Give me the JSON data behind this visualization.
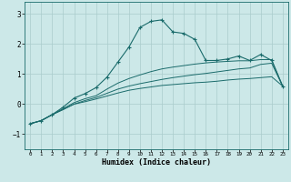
{
  "title": "",
  "xlabel": "Humidex (Indice chaleur)",
  "ylabel": "",
  "background_color": "#cce8e8",
  "grid_color": "#aacccc",
  "line_color": "#1a6b6b",
  "xlim": [
    -0.5,
    23.5
  ],
  "ylim": [
    -1.5,
    3.4
  ],
  "yticks": [
    -1,
    0,
    1,
    2,
    3
  ],
  "xticks": [
    0,
    1,
    2,
    3,
    4,
    5,
    6,
    7,
    8,
    9,
    10,
    11,
    12,
    13,
    14,
    15,
    16,
    17,
    18,
    19,
    20,
    21,
    22,
    23
  ],
  "line1_x": [
    0,
    1,
    2,
    3,
    4,
    5,
    6,
    7,
    8,
    9,
    10,
    11,
    12,
    13,
    14,
    15,
    16,
    17,
    18,
    19,
    20,
    21,
    22,
    23
  ],
  "line1_y": [
    -0.65,
    -0.55,
    -0.35,
    -0.1,
    0.2,
    0.35,
    0.55,
    0.9,
    1.4,
    1.9,
    2.55,
    2.75,
    2.8,
    2.4,
    2.35,
    2.15,
    1.45,
    1.45,
    1.5,
    1.6,
    1.45,
    1.65,
    1.45,
    0.6
  ],
  "line2_x": [
    0,
    1,
    2,
    3,
    4,
    5,
    6,
    7,
    8,
    9,
    10,
    11,
    12,
    13,
    14,
    15,
    16,
    17,
    18,
    19,
    20,
    21,
    22,
    23
  ],
  "line2_y": [
    -0.65,
    -0.55,
    -0.35,
    -0.15,
    0.05,
    0.18,
    0.28,
    0.5,
    0.7,
    0.85,
    0.97,
    1.08,
    1.17,
    1.23,
    1.28,
    1.33,
    1.37,
    1.4,
    1.42,
    1.44,
    1.44,
    1.48,
    1.48,
    0.6
  ],
  "line3_x": [
    0,
    1,
    2,
    3,
    4,
    5,
    6,
    7,
    8,
    9,
    10,
    11,
    12,
    13,
    14,
    15,
    16,
    17,
    18,
    19,
    20,
    21,
    22,
    23
  ],
  "line3_y": [
    -0.65,
    -0.55,
    -0.35,
    -0.18,
    0.0,
    0.12,
    0.22,
    0.36,
    0.5,
    0.6,
    0.68,
    0.75,
    0.82,
    0.88,
    0.93,
    0.98,
    1.02,
    1.07,
    1.12,
    1.17,
    1.2,
    1.32,
    1.36,
    0.6
  ],
  "line4_x": [
    0,
    1,
    2,
    3,
    4,
    5,
    6,
    7,
    8,
    9,
    10,
    11,
    12,
    13,
    14,
    15,
    16,
    17,
    18,
    19,
    20,
    21,
    22,
    23
  ],
  "line4_y": [
    -0.65,
    -0.55,
    -0.35,
    -0.18,
    0.0,
    0.08,
    0.17,
    0.27,
    0.37,
    0.46,
    0.52,
    0.57,
    0.62,
    0.65,
    0.68,
    0.71,
    0.73,
    0.76,
    0.8,
    0.83,
    0.85,
    0.88,
    0.91,
    0.6
  ]
}
